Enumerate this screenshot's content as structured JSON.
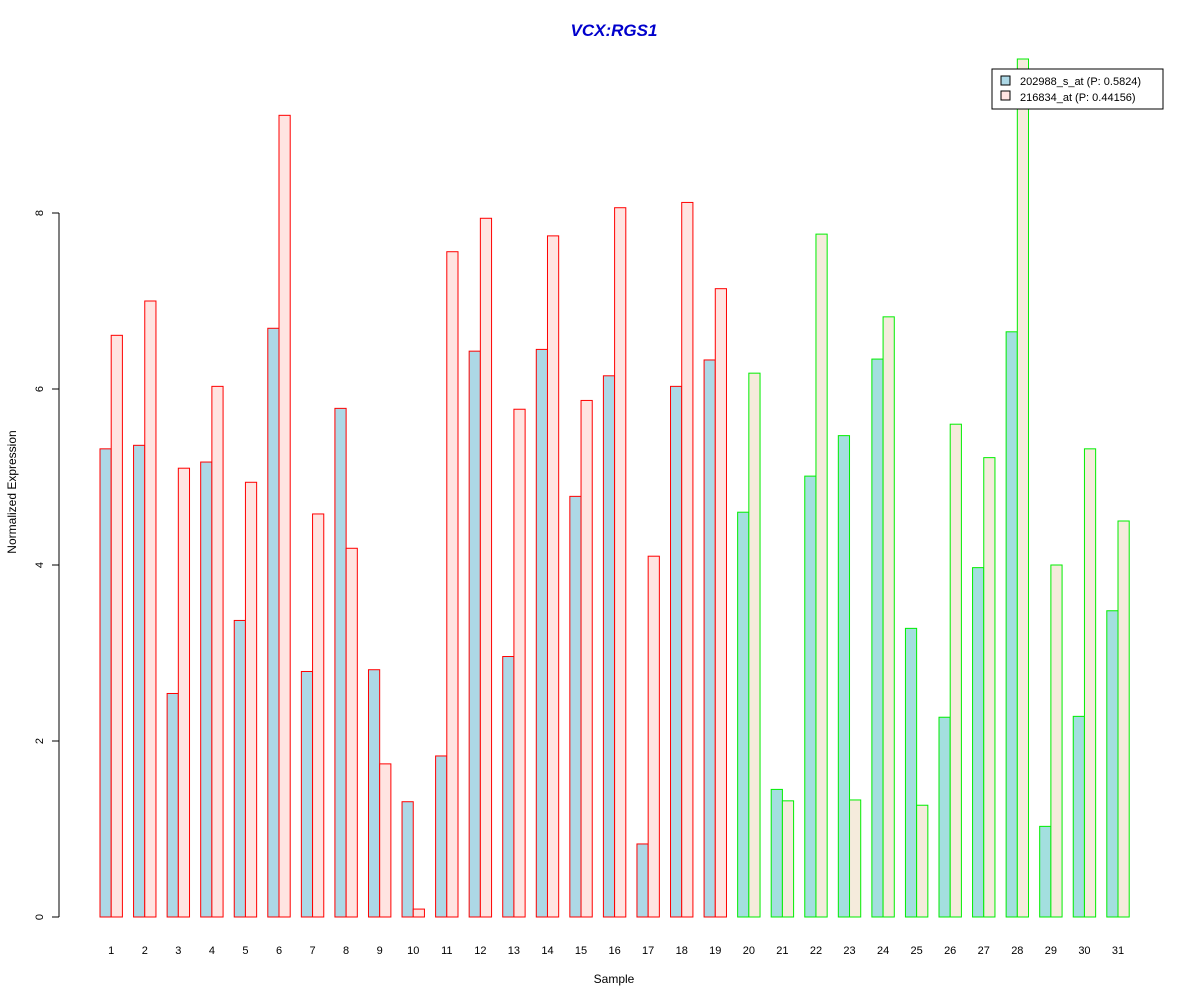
{
  "chart_data": {
    "type": "bar",
    "title": "VCX:RGS1",
    "xlabel": "Sample",
    "ylabel": "Normalized Expression",
    "ylim": [
      0,
      9.75
    ],
    "yticks": [
      0,
      2,
      4,
      6,
      8
    ],
    "grid": false,
    "legend_position": "top-right",
    "categories": [
      "1",
      "2",
      "3",
      "4",
      "5",
      "6",
      "7",
      "8",
      "9",
      "10",
      "11",
      "12",
      "13",
      "14",
      "15",
      "16",
      "17",
      "18",
      "19",
      "20",
      "21",
      "22",
      "23",
      "24",
      "25",
      "26",
      "27",
      "28",
      "29",
      "30",
      "31"
    ],
    "groups": [
      {
        "samples": [
          1,
          19
        ],
        "border_color": "#ff0000"
      },
      {
        "samples": [
          20,
          31
        ],
        "border_color": "#00ee00"
      }
    ],
    "series": [
      {
        "name": "202988_s_at (P: 0.5824)",
        "fill_group1": "#add8e6",
        "fill_group2": "#a3dfdf",
        "values": [
          5.32,
          5.36,
          2.54,
          5.17,
          3.37,
          6.69,
          2.79,
          5.78,
          2.81,
          1.31,
          1.83,
          6.43,
          2.96,
          6.45,
          4.78,
          6.15,
          0.83,
          6.03,
          6.33,
          4.6,
          1.45,
          5.01,
          5.47,
          6.34,
          3.28,
          2.27,
          3.97,
          6.65,
          1.03,
          2.28,
          3.48
        ]
      },
      {
        "name": "216834_at (P: 0.44156)",
        "fill_group1": "#ffe4e1",
        "fill_group2": "#f5ebdc",
        "values": [
          6.61,
          7.0,
          5.1,
          6.03,
          4.94,
          9.11,
          4.58,
          4.19,
          1.74,
          0.09,
          7.56,
          7.94,
          5.77,
          7.74,
          5.87,
          8.06,
          4.1,
          8.12,
          7.14,
          6.18,
          1.32,
          7.76,
          1.33,
          6.82,
          1.27,
          5.6,
          5.22,
          9.75,
          4.0,
          5.32,
          4.5
        ]
      }
    ]
  }
}
